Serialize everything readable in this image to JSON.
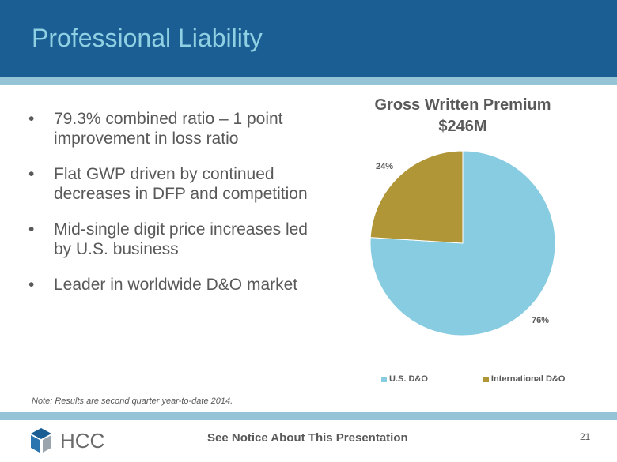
{
  "title": "Professional Liability",
  "bullets": [
    "79.3% combined ratio – 1 point improvement in loss ratio",
    "Flat GWP driven by continued decreases in DFP and competition",
    "Mid-single digit price increases led by U.S. business",
    "Leader in worldwide D&O market"
  ],
  "note": "Note: Results are second quarter year-to-date 2014.",
  "footer": {
    "logo_text": "HCC",
    "notice": "See Notice About This Presentation",
    "page": "21"
  },
  "chart_data": {
    "type": "pie",
    "title": "Gross Written Premium",
    "subtitle": "$246M",
    "categories": [
      "U.S. D&O",
      "International D&O"
    ],
    "values": [
      76,
      24
    ],
    "data_labels": [
      "76%",
      "24%"
    ],
    "colors": [
      "#87cce0",
      "#b09637"
    ],
    "legend": "bottom"
  }
}
